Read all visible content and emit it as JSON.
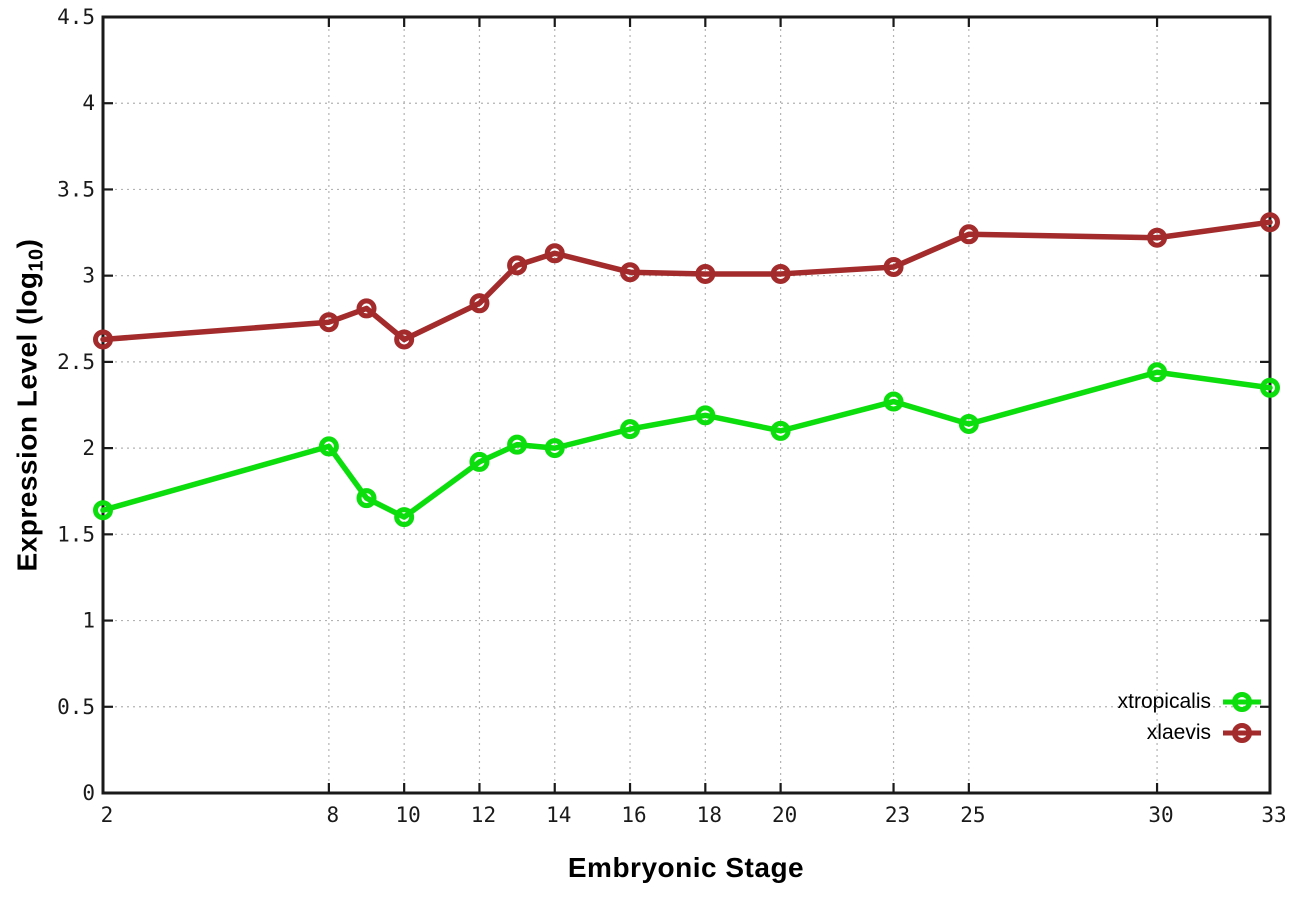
{
  "chart_data": {
    "type": "line",
    "title": "",
    "xlabel": "Embryonic Stage",
    "ylabel": {
      "prefix": "Expression Level (log",
      "subscript": "10",
      "suffix": ")"
    },
    "xlim": [
      2,
      33
    ],
    "ylim": [
      0,
      4.5
    ],
    "grid": true,
    "legend_position": "bottom-right",
    "xticks": {
      "values": [
        2,
        8,
        10,
        12,
        14,
        16,
        18,
        20,
        23,
        25,
        30,
        33
      ],
      "labels": [
        "2",
        "8",
        "10",
        "12",
        "14",
        "16",
        "18",
        "20",
        "23",
        "25",
        "30",
        "33"
      ]
    },
    "yticks": {
      "values": [
        0,
        0.5,
        1,
        1.5,
        2,
        2.5,
        3,
        3.5,
        4,
        4.5
      ],
      "labels": [
        "0",
        "0.5",
        "1",
        "1.5",
        "2",
        "2.5",
        "3",
        "3.5",
        "4",
        "4.5"
      ]
    },
    "x": [
      2,
      8,
      9,
      10,
      12,
      13,
      14,
      16,
      18,
      20,
      23,
      25,
      30,
      33
    ],
    "series": [
      {
        "name": "xtropicalis",
        "color": "#0cdd0c",
        "values": [
          1.64,
          2.01,
          1.71,
          1.6,
          1.92,
          2.02,
          2.0,
          2.11,
          2.19,
          2.1,
          2.27,
          2.14,
          2.44,
          2.35
        ]
      },
      {
        "name": "xlaevis",
        "color": "#a32b2b",
        "values": [
          2.63,
          2.73,
          2.81,
          2.63,
          2.84,
          3.06,
          3.13,
          3.02,
          3.01,
          3.01,
          3.05,
          3.24,
          3.22,
          3.31
        ]
      }
    ],
    "colors": {
      "border": "#1a1a1a",
      "grid": "#b3b3b3",
      "tick_text": "#1a1a1a"
    }
  }
}
